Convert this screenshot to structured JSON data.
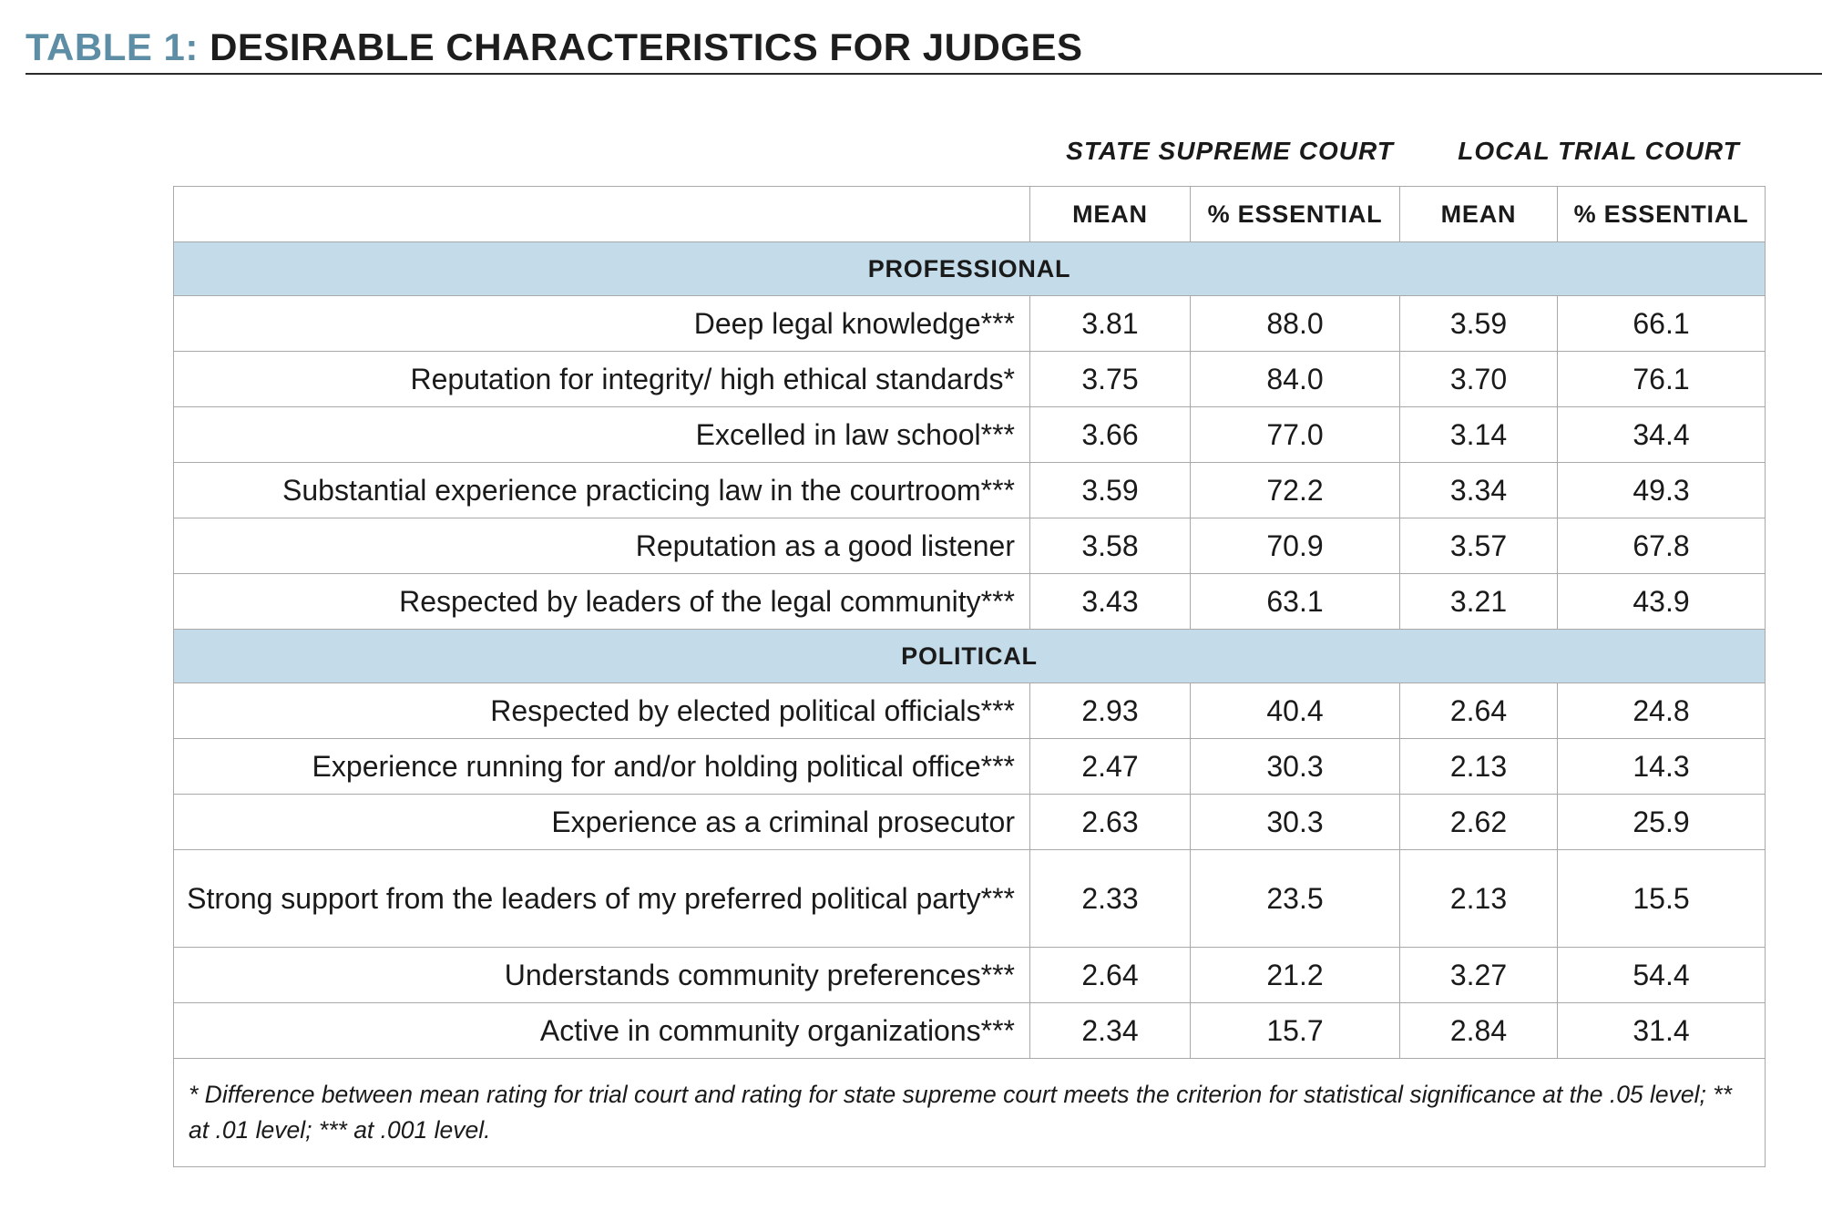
{
  "title": {
    "prefix": "TABLE 1:",
    "main": "DESIRABLE CHARACTERISTICS FOR JUDGES"
  },
  "column_groups": [
    "STATE SUPREME COURT",
    "LOCAL TRIAL COURT"
  ],
  "columns": [
    "",
    "MEAN",
    "% ESSENTIAL",
    "MEAN",
    "% ESSENTIAL"
  ],
  "sections": [
    {
      "name": "PROFESSIONAL",
      "rows": [
        {
          "label": "Deep legal knowledge***",
          "values": [
            "3.81",
            "88.0",
            "3.59",
            "66.1"
          ]
        },
        {
          "label": "Reputation for integrity/ high ethical standards*",
          "values": [
            "3.75",
            "84.0",
            "3.70",
            "76.1"
          ]
        },
        {
          "label": "Excelled in law school***",
          "values": [
            "3.66",
            "77.0",
            "3.14",
            "34.4"
          ]
        },
        {
          "label": "Substantial experience practicing law in the courtroom***",
          "values": [
            "3.59",
            "72.2",
            "3.34",
            "49.3"
          ]
        },
        {
          "label": "Reputation as a good listener",
          "values": [
            "3.58",
            "70.9",
            "3.57",
            "67.8"
          ]
        },
        {
          "label": "Respected by leaders of the legal community***",
          "values": [
            "3.43",
            "63.1",
            "3.21",
            "43.9"
          ]
        }
      ]
    },
    {
      "name": "POLITICAL",
      "rows": [
        {
          "label": "Respected by elected political officials***",
          "values": [
            "2.93",
            "40.4",
            "2.64",
            "24.8"
          ]
        },
        {
          "label": "Experience running for and/or holding political office***",
          "values": [
            "2.47",
            "30.3",
            "2.13",
            "14.3"
          ]
        },
        {
          "label": "Experience as a criminal prosecutor",
          "values": [
            "2.63",
            "30.3",
            "2.62",
            "25.9"
          ]
        },
        {
          "label": "Strong support from the leaders of my preferred political party***",
          "values": [
            "2.33",
            "23.5",
            "2.13",
            "15.5"
          ]
        },
        {
          "label": "Understands community preferences***",
          "values": [
            "2.64",
            "21.2",
            "3.27",
            "54.4"
          ]
        },
        {
          "label": "Active in community organizations***",
          "values": [
            "2.34",
            "15.7",
            "2.84",
            "31.4"
          ]
        }
      ]
    }
  ],
  "footnote": "* Difference between mean rating for trial court and rating for state supreme court meets the criterion for statistical significance at the .05 level; ** at .01 level; *** at .001 level."
}
